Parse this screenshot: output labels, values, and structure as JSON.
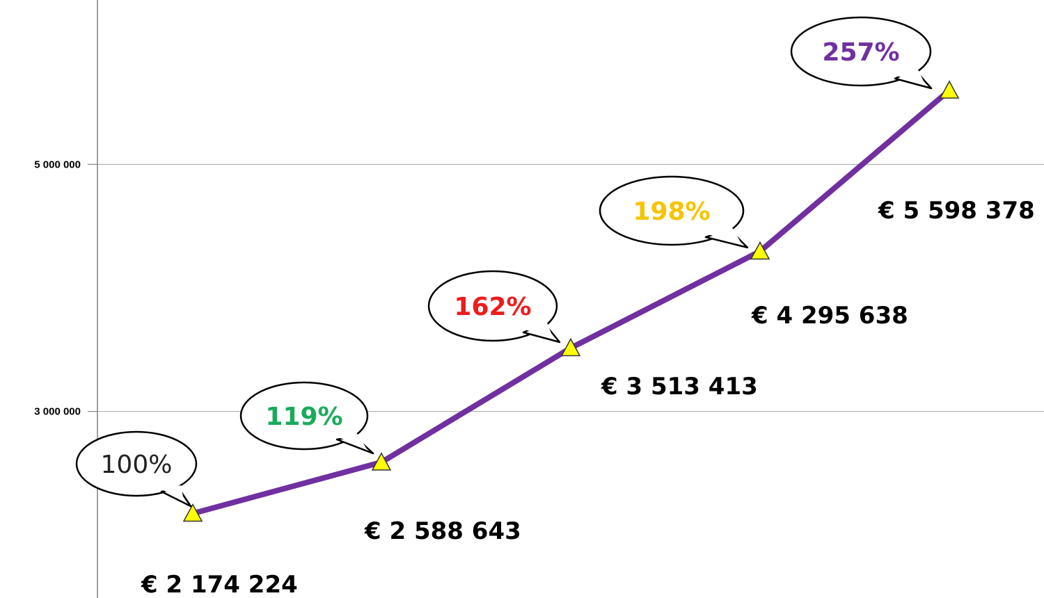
{
  "chart_data": {
    "type": "line",
    "x": [
      1,
      2,
      3,
      4,
      5
    ],
    "values": [
      2174224,
      2588643,
      3513413,
      4295638,
      5598378
    ],
    "value_labels": [
      "€ 2 174 224",
      "€ 2 588 643",
      "€ 3 513 413",
      "€ 4 295 638",
      "€ 5 598 378"
    ],
    "annotations": [
      {
        "text": "100%",
        "color": "#222222",
        "bold": false
      },
      {
        "text": "119%",
        "color": "#1aab5a",
        "bold": true
      },
      {
        "text": "162%",
        "color": "#ee1c1c",
        "bold": true
      },
      {
        "text": "198%",
        "color": "#f5c400",
        "bold": true
      },
      {
        "text": "257%",
        "color": "#7030a0",
        "bold": true
      }
    ],
    "yticks": [
      3000000,
      5000000
    ],
    "ytick_labels": [
      "3 000 000",
      "5 000 000"
    ],
    "ylim": [
      1490000,
      6330000
    ],
    "grid": true,
    "colors": {
      "line": "#7030a0",
      "marker_fill": "#ffff00",
      "marker_stroke": "#333333",
      "grid": "#a0a0a0",
      "axis": "#808080"
    },
    "title": "",
    "xlabel": "",
    "ylabel": ""
  }
}
